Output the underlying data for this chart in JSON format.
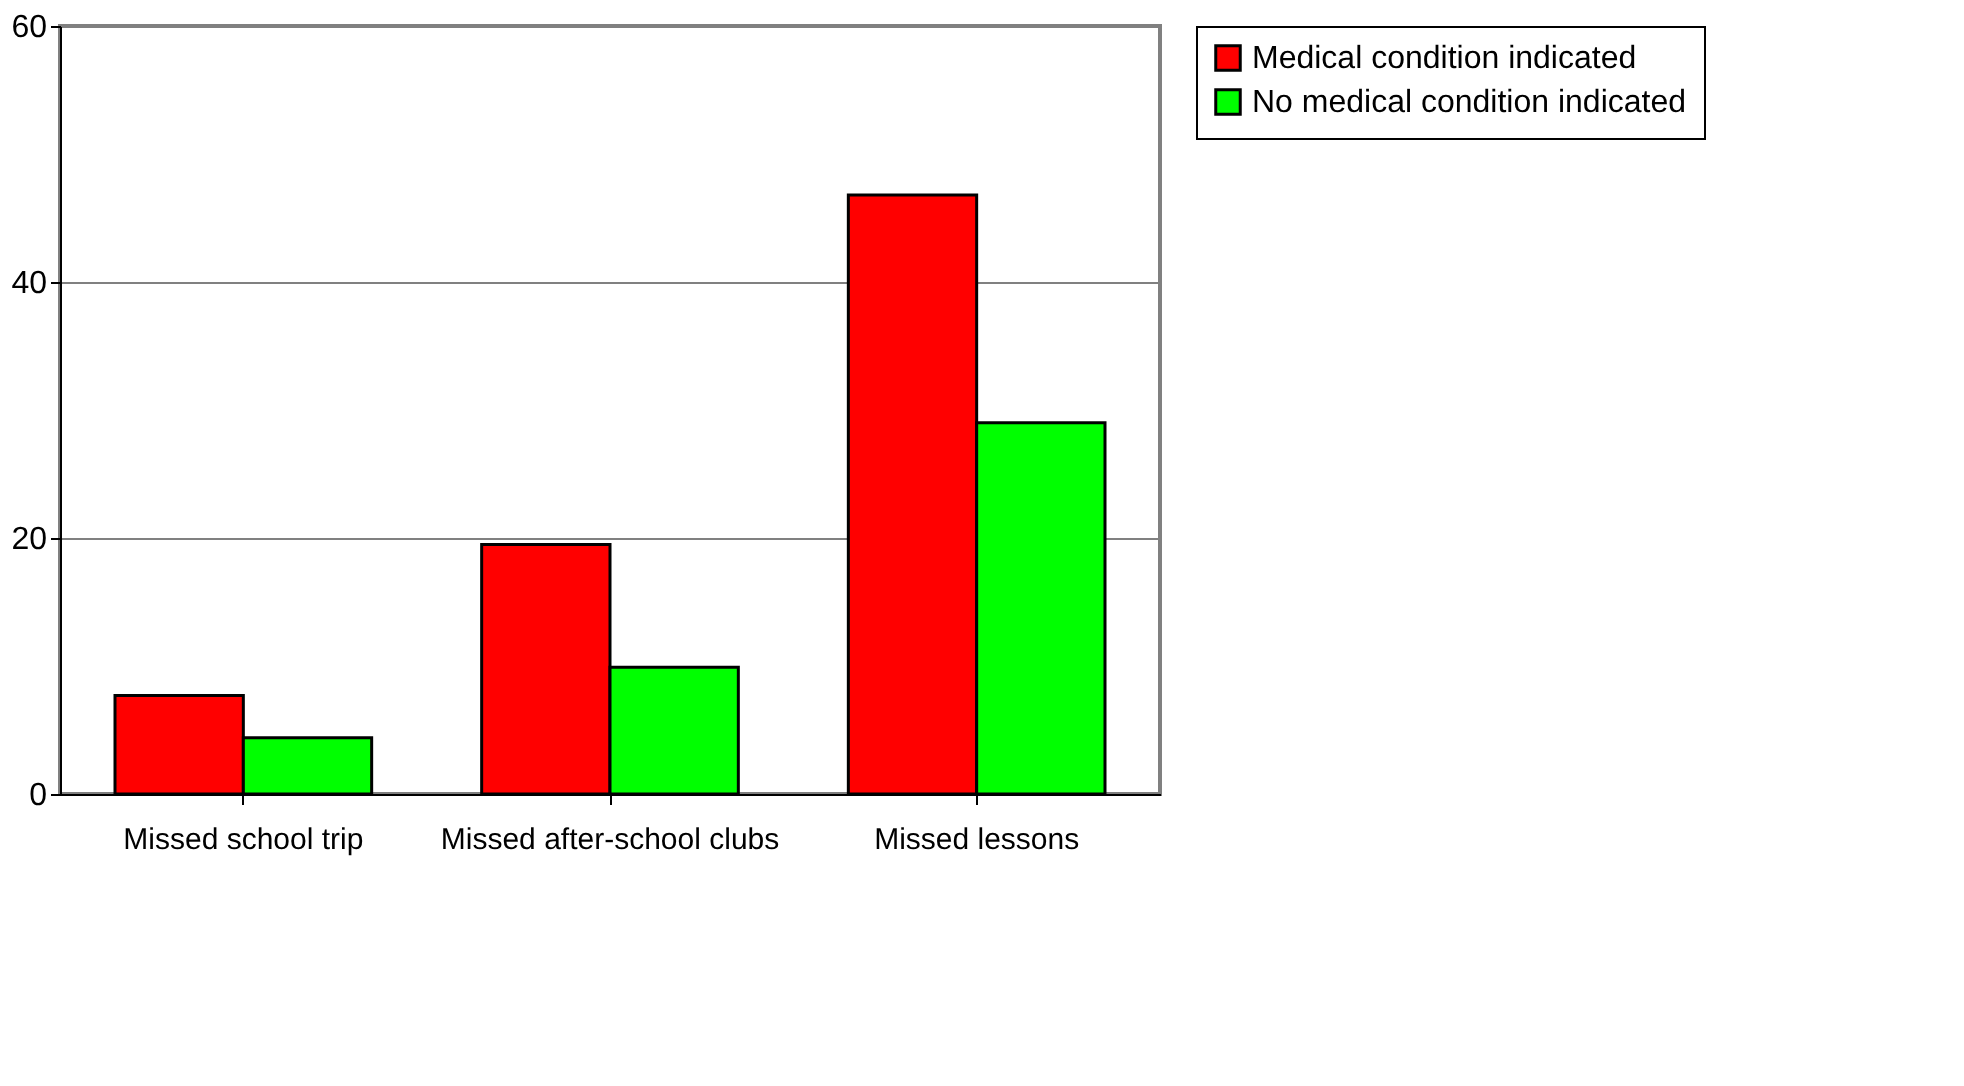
{
  "chart_data": {
    "type": "bar",
    "categories": [
      "Missed school trip",
      "Missed after-school clubs",
      "Missed lessons"
    ],
    "series": [
      {
        "name": "Medical condition indicated",
        "color": "#ff0000",
        "values": [
          7.7,
          19.5,
          46.8
        ]
      },
      {
        "name": "No medical condition indicated",
        "color": "#00ff00",
        "values": [
          4.4,
          9.9,
          29.0
        ]
      }
    ],
    "ylim": [
      0,
      60
    ],
    "yticks": [
      0,
      20,
      40,
      60
    ],
    "grid": "y",
    "legend": "right"
  }
}
